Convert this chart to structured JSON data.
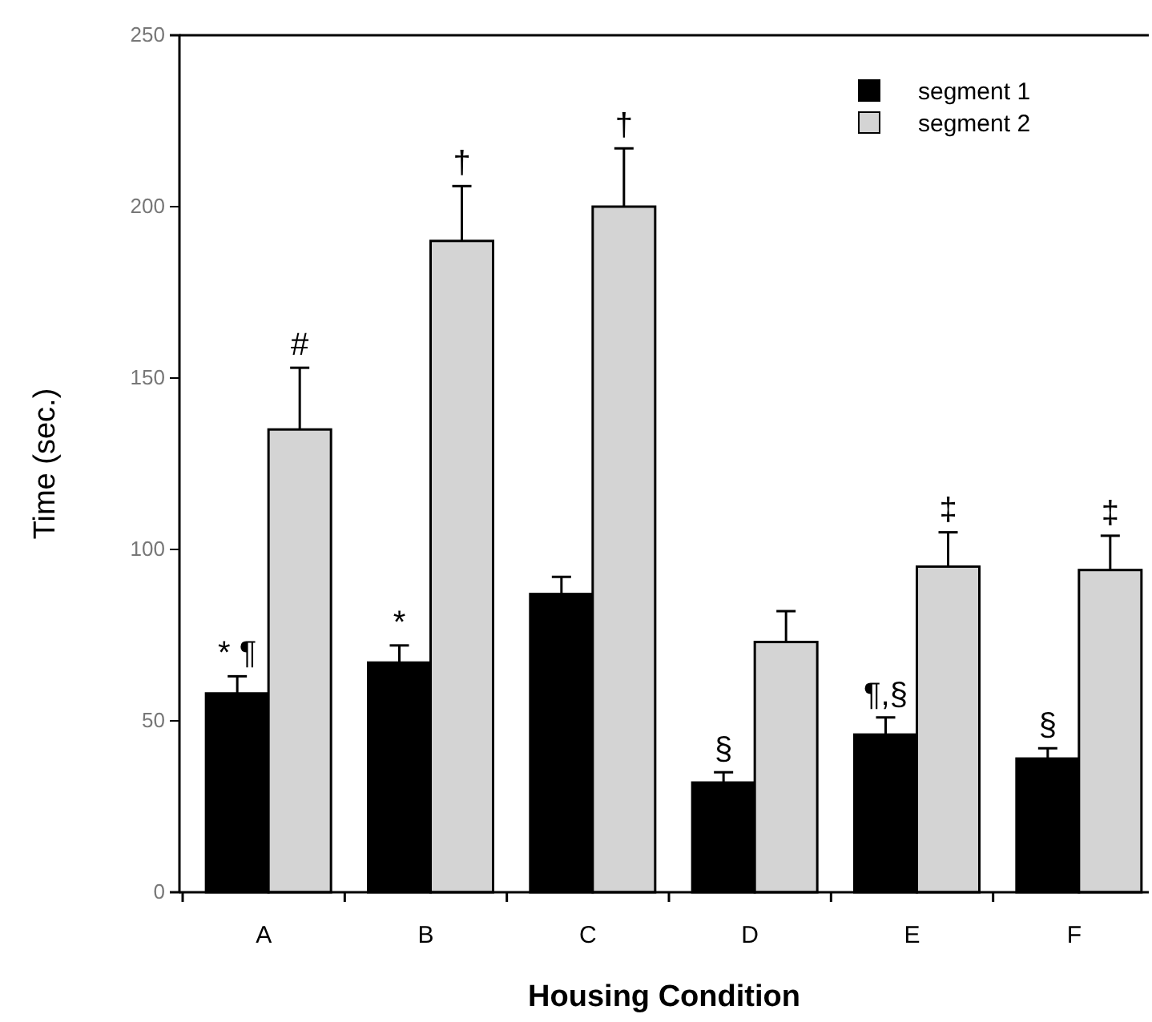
{
  "chart_data": {
    "type": "bar",
    "xlabel": "Housing Condition",
    "ylabel": "Time (sec.)",
    "categories": [
      "A",
      "B",
      "C",
      "D",
      "E",
      "F"
    ],
    "series": [
      {
        "name": "segment 1",
        "color": "#000000",
        "values": [
          58,
          67,
          87,
          32,
          46,
          39
        ],
        "errors": [
          5,
          5,
          5,
          3,
          5,
          3
        ]
      },
      {
        "name": "segment 2",
        "color": "#d4d4d4",
        "values": [
          135,
          190,
          200,
          73,
          95,
          94
        ],
        "errors": [
          18,
          16,
          17,
          9,
          10,
          10
        ]
      }
    ],
    "ylim": [
      0,
      250
    ],
    "yticks": [
      0,
      50,
      100,
      150,
      200,
      250
    ],
    "grid": false,
    "legend": "top right",
    "annotations": [
      {
        "text": "* ¶",
        "x": "A",
        "y": 58
      },
      {
        "text": "#",
        "x": "A",
        "y": 135
      },
      {
        "text": "*",
        "x": "B",
        "y": 67
      },
      {
        "text": "†",
        "x": "B",
        "y": 190
      },
      {
        "text": "†",
        "x": "C",
        "y": 200
      },
      {
        "text": "§",
        "x": "D",
        "y": 32
      },
      {
        "text": "¶,§",
        "x": "E",
        "y": 46
      },
      {
        "text": "‡",
        "x": "E",
        "y": 95
      },
      {
        "text": "§",
        "x": "F",
        "y": 39
      },
      {
        "text": "‡",
        "x": "F",
        "y": 94
      }
    ]
  }
}
